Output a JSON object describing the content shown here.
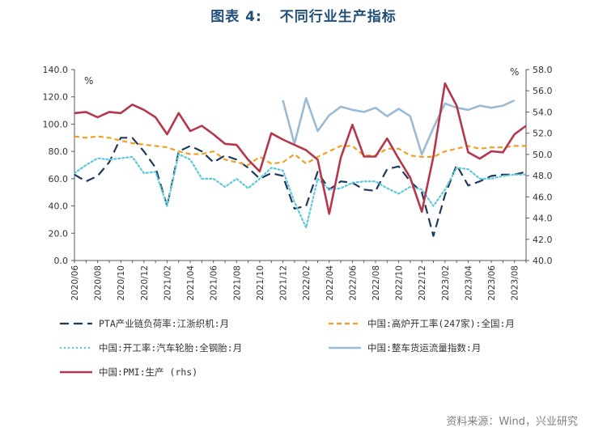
{
  "figure": {
    "label": "图表 4:",
    "title": "不同行业生产指标",
    "source": "资料来源：Wind，兴业研究"
  },
  "chart_data": {
    "type": "line",
    "title": "不同行业生产指标",
    "x": [
      "2020/06",
      "2020/07",
      "2020/08",
      "2020/09",
      "2020/10",
      "2020/11",
      "2020/12",
      "2021/01",
      "2021/02",
      "2021/03",
      "2021/04",
      "2021/05",
      "2021/06",
      "2021/07",
      "2021/08",
      "2021/09",
      "2021/10",
      "2021/11",
      "2021/12",
      "2022/01",
      "2022/02",
      "2022/03",
      "2022/04",
      "2022/05",
      "2022/06",
      "2022/07",
      "2022/08",
      "2022/09",
      "2022/10",
      "2022/11",
      "2022/12",
      "2023/01",
      "2023/02",
      "2023/03",
      "2023/04",
      "2023/05",
      "2023/06",
      "2023/07",
      "2023/08",
      "2023/09"
    ],
    "x_tick_labels": [
      "2020/06",
      "2020/08",
      "2020/10",
      "2020/12",
      "2021/02",
      "2021/04",
      "2021/06",
      "2021/08",
      "2021/10",
      "2021/12",
      "2022/02",
      "2022/04",
      "2022/06",
      "2022/08",
      "2022/10",
      "2022/12",
      "2023/02",
      "2023/04",
      "2023/06",
      "2023/08"
    ],
    "y_left": {
      "unit": "%",
      "lim": [
        0,
        140
      ],
      "ticks": [
        "0.0",
        "20.0",
        "40.0",
        "60.0",
        "80.0",
        "100.0",
        "120.0",
        "140.0"
      ]
    },
    "y_right": {
      "unit": "%",
      "lim": [
        40,
        58
      ],
      "ticks": [
        "40.0",
        "42.0",
        "44.0",
        "46.0",
        "48.0",
        "50.0",
        "52.0",
        "54.0",
        "56.0",
        "58.0"
      ]
    },
    "grid": false,
    "legend_position": "bottom",
    "series": [
      {
        "name": "PTA产业链负荷率:江浙织机:月",
        "axis": "left",
        "color": "#1f3a5f",
        "style": "dash",
        "values": [
          63,
          58,
          62,
          72,
          90,
          90,
          80,
          68,
          40,
          80,
          84,
          80,
          72,
          77,
          74,
          68,
          60,
          64,
          62,
          38,
          40,
          65,
          52,
          58,
          57,
          52,
          51,
          67,
          69,
          58,
          50,
          18,
          48,
          70,
          55,
          58,
          62,
          63,
          63,
          65
        ]
      },
      {
        "name": "中国:高炉开工率(247家):全国:月",
        "axis": "left",
        "color": "#f0a023",
        "style": "dashed",
        "values": [
          91,
          90,
          91,
          90,
          88,
          86,
          85,
          84,
          83,
          80,
          78,
          78,
          80,
          74,
          72,
          70,
          76,
          71,
          72,
          78,
          71,
          76,
          80,
          84,
          84,
          77,
          77,
          82,
          82,
          77,
          76,
          76,
          80,
          82,
          84,
          82,
          83,
          83,
          84,
          84
        ]
      },
      {
        "name": "中国:开工率:汽车轮胎:全钢胎:月",
        "axis": "left",
        "color": "#5bc8dc",
        "style": "dotted",
        "values": [
          64,
          70,
          75,
          74,
          75,
          76,
          64,
          65,
          40,
          78,
          74,
          60,
          60,
          54,
          60,
          53,
          60,
          68,
          66,
          43,
          24,
          60,
          52,
          53,
          57,
          58,
          58,
          53,
          49,
          54,
          52,
          40,
          52,
          68,
          67,
          60,
          60,
          62,
          63,
          63
        ]
      },
      {
        "name": "中国:整车货运流量指数:月",
        "axis": "right",
        "color": "#9bbbd4",
        "style": "solid",
        "values": [
          null,
          null,
          null,
          null,
          null,
          null,
          null,
          null,
          null,
          null,
          null,
          null,
          null,
          null,
          null,
          null,
          null,
          null,
          55.1,
          51.0,
          55.3,
          52.2,
          53.7,
          54.5,
          54.2,
          54.0,
          54.4,
          53.6,
          54.3,
          53.6,
          50.0,
          52.5,
          54.8,
          54.4,
          54.2,
          54.6,
          54.4,
          54.6,
          55.1,
          null
        ]
      },
      {
        "name": "中国:PMI:生产 (rhs)",
        "axis": "right",
        "color": "#b5374c",
        "style": "solid",
        "values": [
          53.9,
          54.0,
          53.5,
          54.0,
          53.9,
          54.7,
          54.2,
          53.5,
          51.9,
          53.9,
          52.2,
          52.7,
          51.9,
          51.0,
          50.9,
          49.5,
          48.4,
          52.0,
          51.4,
          50.9,
          50.4,
          49.5,
          44.4,
          49.7,
          52.8,
          49.8,
          49.8,
          51.5,
          49.6,
          47.8,
          44.6,
          49.8,
          56.7,
          54.6,
          50.2,
          49.6,
          50.3,
          50.2,
          51.9,
          52.7
        ]
      }
    ]
  }
}
